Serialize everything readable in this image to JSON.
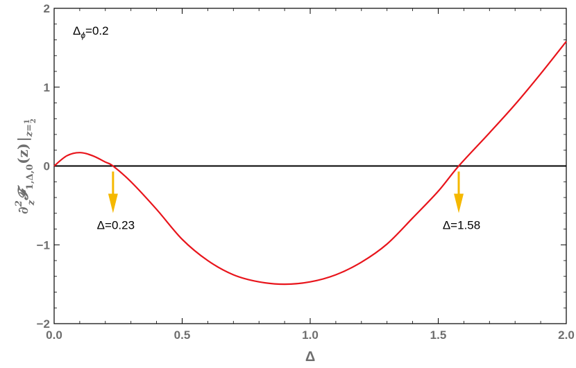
{
  "chart_data": {
    "type": "line",
    "title": "",
    "xlabel": "Δ",
    "ylabel": "∂z²𝓕1,Δ,0(z)|z=½",
    "xlim": [
      0,
      2
    ],
    "ylim": [
      -2,
      2
    ],
    "x_ticks": [
      "0.0",
      "0.5",
      "1.0",
      "1.5",
      "2.0"
    ],
    "y_ticks": [
      "2",
      "1",
      "0",
      "−1",
      "−2"
    ],
    "x_tick_values": [
      0,
      0.5,
      1.0,
      1.5,
      2.0
    ],
    "y_tick_values": [
      2,
      1,
      0,
      -1,
      -2
    ],
    "grid": false,
    "series": [
      {
        "color": "#e8141b",
        "x": [
          0.0,
          0.05,
          0.1,
          0.15,
          0.2,
          0.23,
          0.3,
          0.4,
          0.5,
          0.6,
          0.7,
          0.8,
          0.9,
          1.0,
          1.1,
          1.2,
          1.3,
          1.4,
          1.5,
          1.58,
          1.7,
          1.8,
          1.9,
          2.0
        ],
        "y": [
          0.0,
          0.13,
          0.17,
          0.13,
          0.05,
          0.0,
          -0.2,
          -0.55,
          -0.93,
          -1.2,
          -1.38,
          -1.47,
          -1.5,
          -1.47,
          -1.38,
          -1.22,
          -0.99,
          -0.66,
          -0.32,
          0.0,
          0.42,
          0.78,
          1.17,
          1.58
        ]
      }
    ],
    "reference_line": {
      "y": 0,
      "color": "#000000"
    },
    "annotations": [
      {
        "label_prefix": "Δ",
        "sub": "ϕ",
        "value": "=0.2",
        "position": "top-left"
      },
      {
        "text": "Δ=0.23",
        "x": 0.23,
        "arrow_color": "#f5b800"
      },
      {
        "text": "Δ=1.58",
        "x": 1.58,
        "arrow_color": "#f5b800"
      }
    ]
  }
}
